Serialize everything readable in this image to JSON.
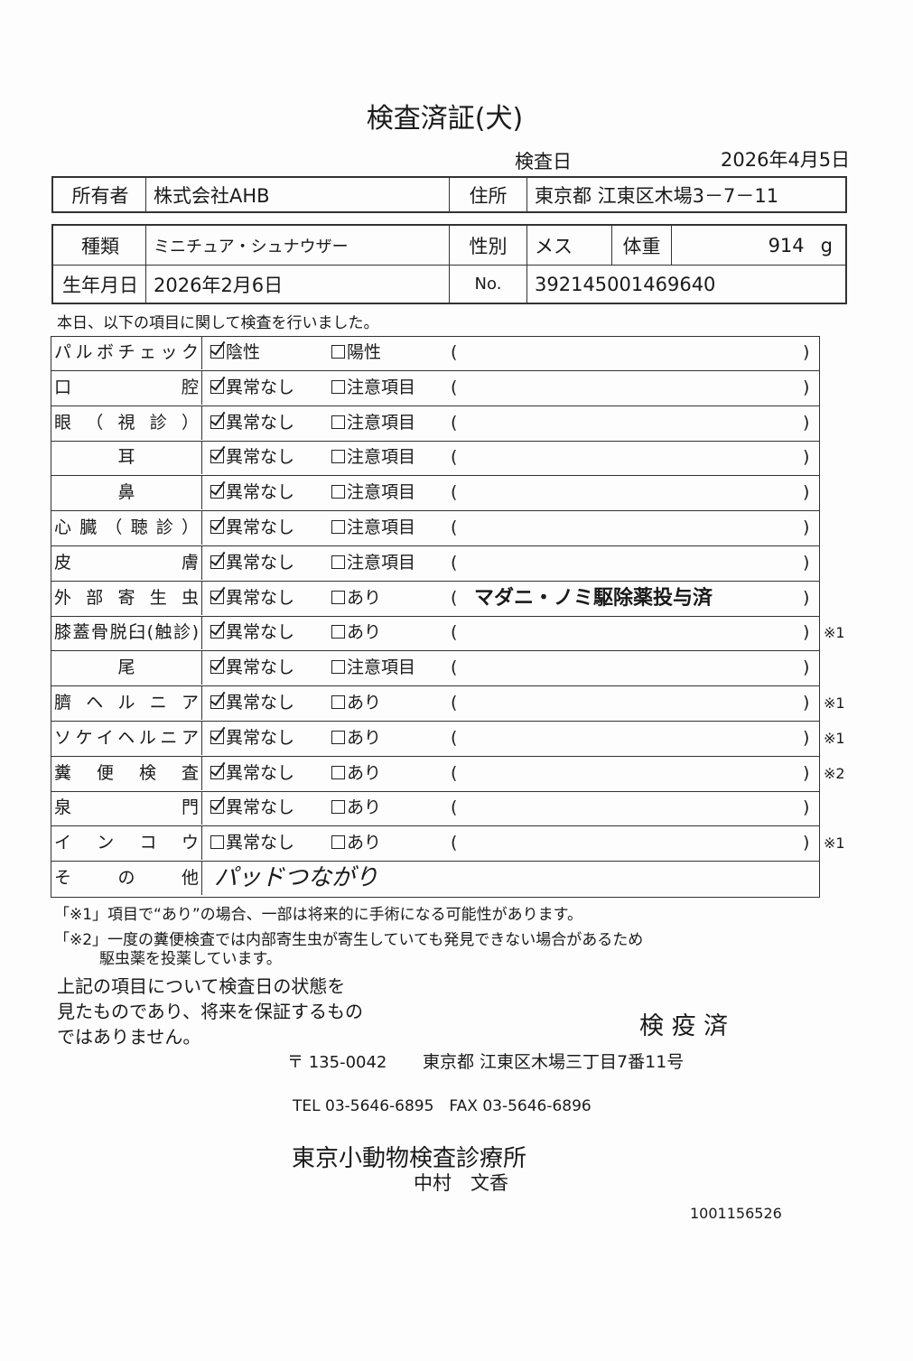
{
  "title": "検査済証(犬)",
  "exam_date_label": "検査日",
  "exam_date": "2026年4月5日",
  "owner_label": "所有者",
  "owner": "株式会社AHB",
  "address_label": "住所",
  "address": "東京都 江東区木場3－7－11",
  "breed_label": "種類",
  "breed": "ミニチュア・シュナウザー",
  "sex_label": "性別",
  "sex": "メス",
  "weight_label": "体重",
  "weight": "914",
  "weight_unit": "g",
  "birth_label": "生年月日",
  "birth": "2026年2月6日",
  "no_label": "No.",
  "no": "392145001469640",
  "intro": "本日、以下の項目に関して検査を行いました。",
  "rows": [
    {
      "label": "パルボチェック",
      "opt1": "陰性",
      "opt2": "陽性",
      "checked": true,
      "comment": "",
      "note": ""
    },
    {
      "label": "口　　　腔",
      "opt1": "異常なし",
      "opt2": "注意項目",
      "checked": true,
      "comment": "",
      "note": ""
    },
    {
      "label": "眼（視診）",
      "opt1": "異常なし",
      "opt2": "注意項目",
      "checked": true,
      "comment": "",
      "note": ""
    },
    {
      "label": "耳",
      "opt1": "異常なし",
      "opt2": "注意項目",
      "checked": true,
      "comment": "",
      "note": ""
    },
    {
      "label": "鼻",
      "opt1": "異常なし",
      "opt2": "注意項目",
      "checked": true,
      "comment": "",
      "note": ""
    },
    {
      "label": "心臓（聴診）",
      "opt1": "異常なし",
      "opt2": "注意項目",
      "checked": true,
      "comment": "",
      "note": ""
    },
    {
      "label": "皮　　　膚",
      "opt1": "異常なし",
      "opt2": "注意項目",
      "checked": true,
      "comment": "",
      "note": ""
    },
    {
      "label": "外部寄生虫",
      "opt1": "異常なし",
      "opt2": "あり",
      "checked": true,
      "comment": "マダニ・ノミ駆除薬投与済",
      "note": ""
    },
    {
      "label": "膝蓋骨脱臼(触診)",
      "opt1": "異常なし",
      "opt2": "あり",
      "checked": true,
      "comment": "",
      "note": "※1"
    },
    {
      "label": "尾",
      "opt1": "異常なし",
      "opt2": "注意項目",
      "checked": true,
      "comment": "",
      "note": ""
    },
    {
      "label": "臍ヘルニア",
      "opt1": "異常なし",
      "opt2": "あり",
      "checked": true,
      "comment": "",
      "note": "※1"
    },
    {
      "label": "ソケイヘルニア",
      "opt1": "異常なし",
      "opt2": "あり",
      "checked": true,
      "comment": "",
      "note": "※1"
    },
    {
      "label": "糞便検査",
      "opt1": "異常なし",
      "opt2": "あり",
      "checked": true,
      "comment": "",
      "note": "※2"
    },
    {
      "label": "泉　　　門",
      "opt1": "異常なし",
      "opt2": "あり",
      "checked": true,
      "comment": "",
      "note": ""
    },
    {
      "label": "インコウ",
      "opt1": "異常なし",
      "opt2": "あり",
      "checked": false,
      "comment": "",
      "note": "※1"
    }
  ],
  "other_label": "そ　の　他",
  "other_value": "パッドつながり",
  "footnote1": "「※1」項目で“あり”の場合、一部は将来的に手術になる可能性があります。",
  "footnote2a": "「※2」一度の糞便検査では内部寄生虫が寄生していても発見できない場合があるため",
  "footnote2b": "駆虫薬を投薬しています。",
  "disclaimer": [
    "上記の項目について検査日の状態を",
    "見たものであり、将来を保証するもの",
    "ではありません。"
  ],
  "stamp": "検 疫 済",
  "postal": "〒 135-0042",
  "clinic_address": "東京都 江東区木場三丁目7番11号",
  "tel": "TEL 03-5646-6895　FAX 03-5646-6896",
  "clinic": "東京小動物検査診療所",
  "doctor": "中村　文香",
  "doc_id": "1001156526"
}
